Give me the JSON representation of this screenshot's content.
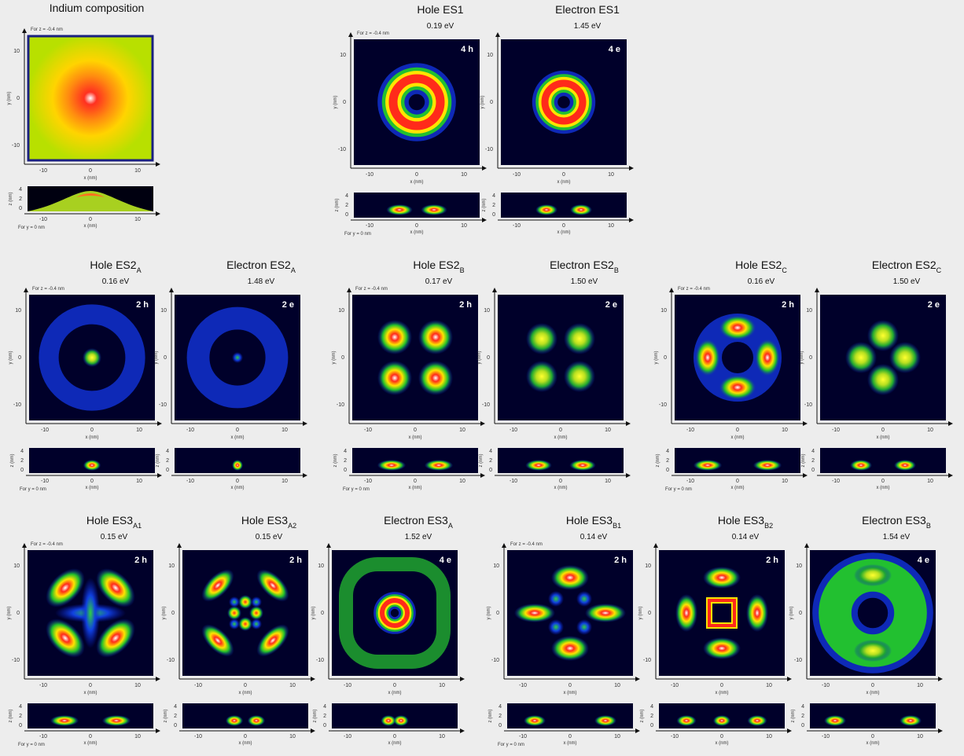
{
  "figure": {
    "panels": [
      {
        "title": "Indium composition"
      },
      {
        "title": "Hole ES1",
        "energy": "0.19 eV",
        "label": "4 h"
      },
      {
        "title": "Electron ES1",
        "energy": "1.45 eV",
        "label": "4 e"
      },
      {
        "title": "Hole ES2",
        "sub": "A",
        "energy": "0.16 eV",
        "label": "2 h"
      },
      {
        "title": "Electron ES2",
        "sub": "A",
        "energy": "1.48 eV",
        "label": "2 e"
      },
      {
        "title": "Hole ES2",
        "sub": "B",
        "energy": "0.17 eV",
        "label": "2 h"
      },
      {
        "title": "Electron ES2",
        "sub": "B",
        "energy": "1.50 eV",
        "label": "2 e"
      },
      {
        "title": "Hole ES2",
        "sub": "C",
        "energy": "0.16 eV",
        "label": "2 h"
      },
      {
        "title": "Electron ES2",
        "sub": "C",
        "energy": "1.50 eV",
        "label": "2 e"
      },
      {
        "title": "Hole ES3",
        "sub": "A1",
        "energy": "0.15 eV",
        "label": "2 h"
      },
      {
        "title": "Hole ES3",
        "sub": "A2",
        "energy": "0.15 eV",
        "label": "2 h"
      },
      {
        "title": "Electron ES3",
        "sub": "A",
        "energy": "1.52 eV",
        "label": "4 e"
      },
      {
        "title": "Hole ES3",
        "sub": "B1",
        "energy": "0.14 eV",
        "label": "2 h"
      },
      {
        "title": "Hole ES3",
        "sub": "B2",
        "energy": "0.14 eV",
        "label": "2 h"
      },
      {
        "title": "Electron ES3",
        "sub": "B",
        "energy": "1.54 eV",
        "label": "4 e"
      }
    ],
    "axes": {
      "x_label": "x (nm)",
      "y_label": "y (nm)",
      "z_label": "z (nm)",
      "xy_ticks": [
        "-10",
        "0",
        "10"
      ],
      "z_ticks": [
        "0",
        "2",
        "4"
      ]
    },
    "notes": {
      "top": "For z = -0.4 nm",
      "bottom": "For y = 0 nm"
    }
  }
}
